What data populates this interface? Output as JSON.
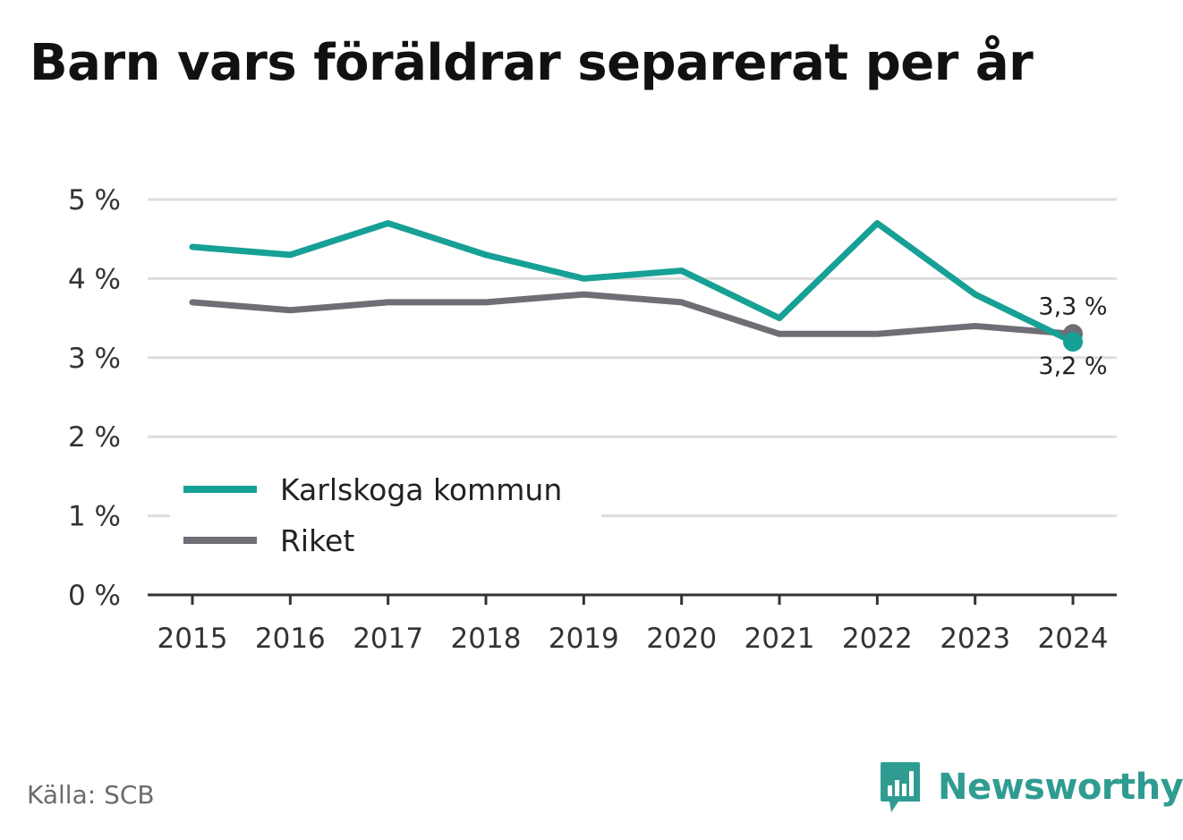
{
  "title": "Barn vars föräldrar separerat per år",
  "source": "Källa: SCB",
  "brand": {
    "name": "Newsworthy",
    "icon": "newsworthy-logo-icon",
    "color": "#2f9c92"
  },
  "colors": {
    "karlskoga": "#16a096",
    "riket": "#6e6e74",
    "grid": "#dddddd",
    "axis": "#333333"
  },
  "chart_data": {
    "type": "line",
    "title": "Barn vars föräldrar separerat per år",
    "x": [
      2015,
      2016,
      2017,
      2018,
      2019,
      2020,
      2021,
      2022,
      2023,
      2024
    ],
    "x_tick_labels": [
      "2015",
      "2016",
      "2017",
      "2018",
      "2019",
      "2020",
      "2021",
      "2022",
      "2023",
      "2024"
    ],
    "y_tick_labels": [
      "0 %",
      "1 %",
      "2 %",
      "3 %",
      "4 %",
      "5 %"
    ],
    "ylim": [
      0,
      5
    ],
    "grid": true,
    "legend_position": "bottom-left",
    "series": [
      {
        "name": "Karlskoga kommun",
        "color": "#16a096",
        "values": [
          4.4,
          4.3,
          4.7,
          4.3,
          4.0,
          4.1,
          3.5,
          4.7,
          3.8,
          3.2
        ],
        "end_label": "3,2 %"
      },
      {
        "name": "Riket",
        "color": "#6e6e74",
        "values": [
          3.7,
          3.6,
          3.7,
          3.7,
          3.8,
          3.7,
          3.3,
          3.3,
          3.4,
          3.3
        ],
        "end_label": "3,3 %"
      }
    ]
  }
}
